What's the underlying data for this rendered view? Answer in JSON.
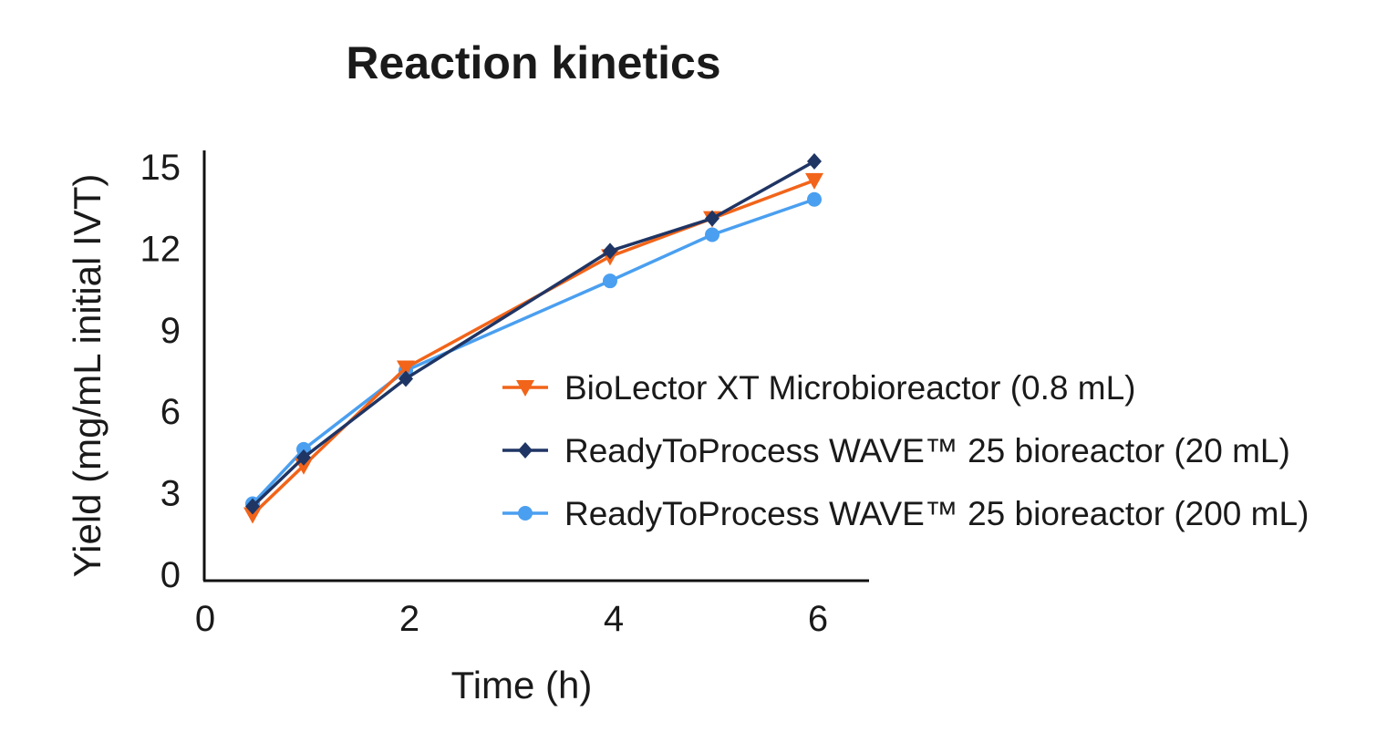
{
  "chart_data": {
    "type": "line",
    "title": "Reaction kinetics",
    "xlabel": "Time (h)",
    "ylabel": "Yield (mg/mL initial IVT)",
    "xlim": [
      0,
      6.5
    ],
    "ylim": [
      0,
      15.5
    ],
    "xticks": [
      "0",
      "2",
      "4",
      "6"
    ],
    "yticks": [
      "0",
      "3",
      "6",
      "9",
      "12",
      "15"
    ],
    "grid": false,
    "legend_placement": "right",
    "x": [
      0.5,
      1,
      2,
      4,
      5,
      6
    ],
    "series": [
      {
        "name": "BioLector XT Microbioreactor (0.8 mL)",
        "color": "#f26419",
        "marker": "triangle-down",
        "values": [
          2.2,
          4.0,
          7.6,
          11.7,
          13.1,
          14.5
        ]
      },
      {
        "name": "ReadyToProcess WAVE™ 25 bioreactor (20 mL)",
        "color": "#1f3564",
        "marker": "diamond",
        "values": [
          2.5,
          4.3,
          7.2,
          11.9,
          13.1,
          15.2
        ]
      },
      {
        "name": "ReadyToProcess WAVE™ 25 bioreactor (200 mL)",
        "color": "#4a9ff0",
        "marker": "circle",
        "values": [
          2.6,
          4.6,
          7.5,
          10.8,
          12.5,
          13.8
        ]
      }
    ]
  }
}
